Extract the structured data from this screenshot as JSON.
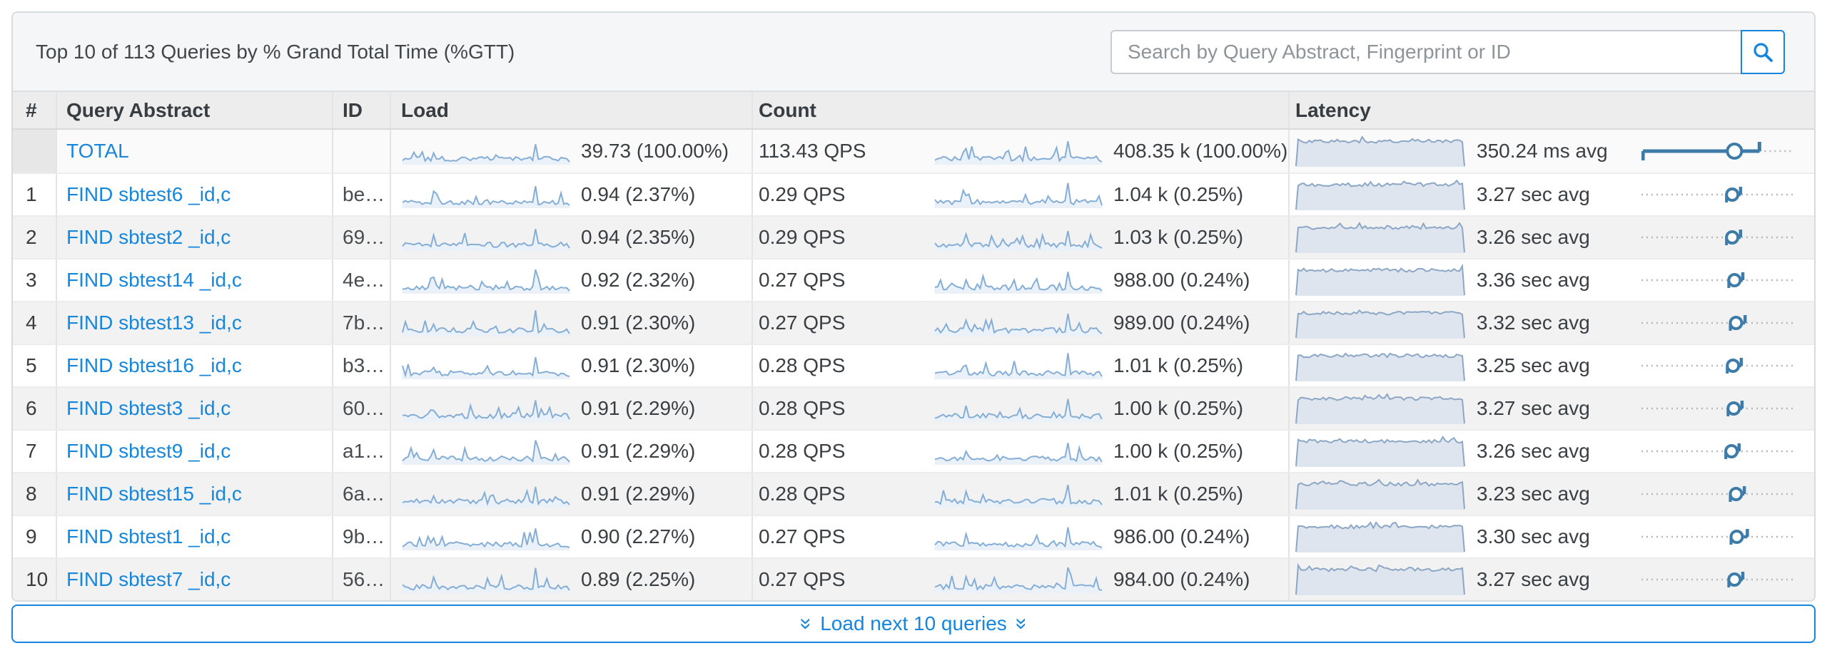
{
  "header": {
    "title": "Top 10 of 113 Queries by % Grand Total Time (%GTT)",
    "search": {
      "placeholder": "Search by Query Abstract, Fingerprint or ID"
    }
  },
  "table": {
    "columns": [
      "#",
      "Query Abstract",
      "ID",
      "Load",
      "Count",
      "Latency"
    ],
    "total_row": {
      "num": "",
      "abstract": "TOTAL",
      "id": "",
      "load_value": "39.73 (100.00%)",
      "qps": "113.43 QPS",
      "count_value": "408.35 k (100.00%)",
      "latency_value": "350.24 ms avg",
      "range": {
        "bar_start": 0.01,
        "bar_end": 0.78,
        "dot": 0.615
      }
    },
    "rows": [
      {
        "num": "1",
        "abstract": "FIND sbtest6 _id,c",
        "id": "be…",
        "load_value": "0.94 (2.37%)",
        "qps": "0.29 QPS",
        "count_value": "1.04 k (0.25%)",
        "latency_value": "3.27 sec avg",
        "range": {
          "dot": 0.6,
          "tick": 0.655
        }
      },
      {
        "num": "2",
        "abstract": "FIND sbtest2 _id,c",
        "id": "69…",
        "load_value": "0.94 (2.35%)",
        "qps": "0.29 QPS",
        "count_value": "1.03 k (0.25%)",
        "latency_value": "3.26 sec avg",
        "range": {
          "dot": 0.6,
          "tick": 0.655
        }
      },
      {
        "num": "3",
        "abstract": "FIND sbtest14 _id,c",
        "id": "4e…",
        "load_value": "0.92 (2.32%)",
        "qps": "0.27 QPS",
        "count_value": "988.00 (0.24%)",
        "latency_value": "3.36 sec avg",
        "range": {
          "dot": 0.615,
          "tick": 0.67
        }
      },
      {
        "num": "4",
        "abstract": "FIND sbtest13 _id,c",
        "id": "7b…",
        "load_value": "0.91 (2.30%)",
        "qps": "0.27 QPS",
        "count_value": "989.00 (0.24%)",
        "latency_value": "3.32 sec avg",
        "range": {
          "dot": 0.625,
          "tick": 0.685
        }
      },
      {
        "num": "5",
        "abstract": "FIND sbtest16 _id,c",
        "id": "b3…",
        "load_value": "0.91 (2.30%)",
        "qps": "0.28 QPS",
        "count_value": "1.01 k (0.25%)",
        "latency_value": "3.25 sec avg",
        "range": {
          "dot": 0.605,
          "tick": 0.66
        }
      },
      {
        "num": "6",
        "abstract": "FIND sbtest3 _id,c",
        "id": "60…",
        "load_value": "0.91 (2.29%)",
        "qps": "0.28 QPS",
        "count_value": "1.00 k (0.25%)",
        "latency_value": "3.27 sec avg",
        "range": {
          "dot": 0.61,
          "tick": 0.665
        }
      },
      {
        "num": "7",
        "abstract": "FIND sbtest9 _id,c",
        "id": "a1…",
        "load_value": "0.91 (2.29%)",
        "qps": "0.28 QPS",
        "count_value": "1.00 k (0.25%)",
        "latency_value": "3.26 sec avg",
        "range": {
          "dot": 0.595,
          "tick": 0.645
        }
      },
      {
        "num": "8",
        "abstract": "FIND sbtest15 _id,c",
        "id": "6a…",
        "load_value": "0.91 (2.29%)",
        "qps": "0.28 QPS",
        "count_value": "1.01 k (0.25%)",
        "latency_value": "3.23 sec avg",
        "range": {
          "dot": 0.625,
          "tick": 0.68
        }
      },
      {
        "num": "9",
        "abstract": "FIND sbtest1 _id,c",
        "id": "9b…",
        "load_value": "0.90 (2.27%)",
        "qps": "0.27 QPS",
        "count_value": "986.00 (0.24%)",
        "latency_value": "3.30 sec avg",
        "range": {
          "dot": 0.63,
          "tick": 0.7
        }
      },
      {
        "num": "10",
        "abstract": "FIND sbtest7 _id,c",
        "id": "56…",
        "load_value": "0.89 (2.25%)",
        "qps": "0.27 QPS",
        "count_value": "984.00 (0.24%)",
        "latency_value": "3.27 sec avg",
        "range": {
          "dot": 0.615,
          "tick": 0.67
        }
      }
    ]
  },
  "footer": {
    "load_more_label": "Load next 10 queries",
    "chevron_glyph": "»"
  },
  "colors": {
    "accent": "#1585dd",
    "link": "#1787db",
    "spark_stroke": "#85aed6",
    "spark_fill": "#eaf1f8",
    "latency_stroke": "#8ca7c6",
    "latency_fill": "#dfe5ee",
    "range_blue": "#3d7ba9",
    "dotted_gray": "#b8b8b8"
  }
}
